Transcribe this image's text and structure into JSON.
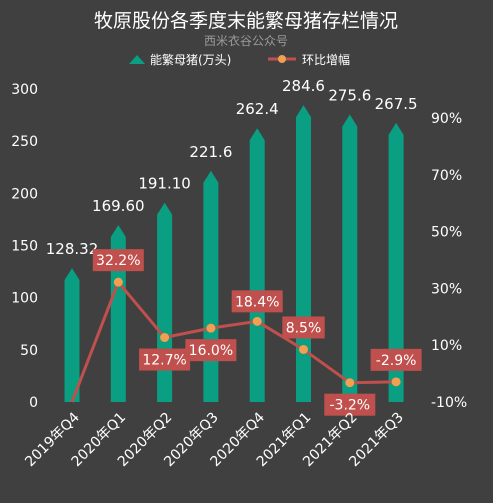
{
  "chart_data": {
    "type": "bar",
    "title": "牧原股份各季度末能繁母猪存栏情况",
    "subtitle": "西米衣谷公众号",
    "categories": [
      "2019年Q4",
      "2020年Q1",
      "2020年Q2",
      "2020年Q3",
      "2020年Q4",
      "2021年Q1",
      "2021年Q2",
      "2021年Q3"
    ],
    "series": [
      {
        "name": "能繁母猪(万头)",
        "type": "bar",
        "axis": "left",
        "color": "#0a9e82",
        "values": [
          128.32,
          169.6,
          191.1,
          221.6,
          262.4,
          284.6,
          275.6,
          267.5
        ],
        "labels": [
          "128.32",
          "169.60",
          "191.10",
          "221.6",
          "262.4",
          "284.6",
          "275.6",
          "267.5"
        ]
      },
      {
        "name": "环比增幅",
        "type": "line",
        "axis": "right",
        "color": "#c0504d",
        "marker_color": "#f0a050",
        "values": [
          null,
          32.2,
          12.7,
          16.0,
          18.4,
          8.5,
          -3.2,
          -2.9
        ],
        "labels": [
          "",
          "32.2%",
          "12.7%",
          "16.0%",
          "18.4%",
          "8.5%",
          "-3.2%",
          "-2.9%"
        ],
        "first_point_value": -10
      }
    ],
    "y_left": {
      "ticks": [
        "0",
        "50",
        "100",
        "150",
        "200",
        "250",
        "300"
      ],
      "ylim": [
        0,
        300
      ]
    },
    "y_right": {
      "ticks": [
        "-10%",
        "10%",
        "30%",
        "50%",
        "70%",
        "90%"
      ],
      "ylim": [
        -10,
        100
      ]
    },
    "legend_position": "top-center",
    "grid": false
  }
}
